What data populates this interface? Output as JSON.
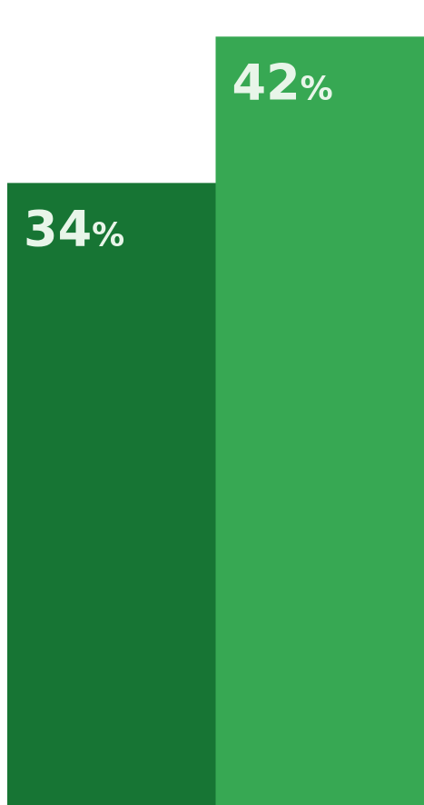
{
  "chart_data": {
    "type": "bar",
    "categories": [
      "",
      ""
    ],
    "values": [
      34,
      42
    ],
    "labels": [
      "34",
      "42"
    ],
    "unit": "%",
    "colors": [
      "#177534",
      "#37A853"
    ],
    "label_color": "#E8F5E9",
    "ylim": [
      0,
      44
    ]
  }
}
